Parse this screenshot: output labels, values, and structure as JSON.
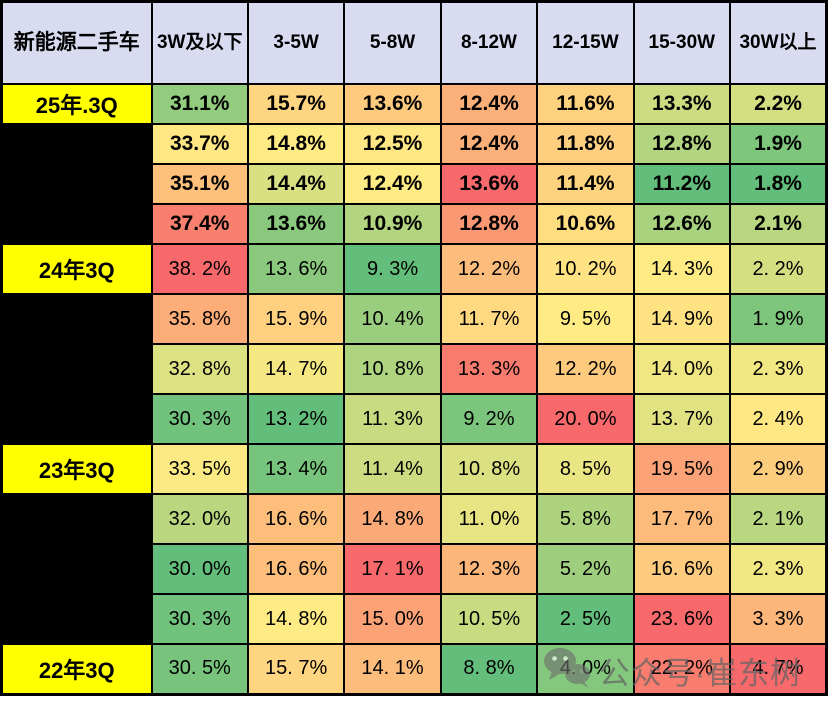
{
  "watermark": {
    "text": "公众号·崔东树",
    "icon": "wechat-icon"
  },
  "chart_data": {
    "type": "heatmap",
    "title": "新能源二手车",
    "value_unit": "%",
    "columns": [
      "3W及以下",
      "3-5W",
      "5-8W",
      "8-12W",
      "12-15W",
      "15-30W",
      "30W以上"
    ],
    "rows": [
      {
        "label": "25年.3Q",
        "label_bg": "yellow",
        "bold": true,
        "text": [
          "31.1%",
          "15.7%",
          "13.6%",
          "12.4%",
          "11.6%",
          "13.3%",
          "2.2%"
        ],
        "values": [
          31.1,
          15.7,
          13.6,
          12.4,
          11.6,
          13.3,
          2.2
        ]
      },
      {
        "label": "",
        "label_bg": "black",
        "bold": true,
        "text": [
          "33.7%",
          "14.8%",
          "12.5%",
          "12.4%",
          "11.8%",
          "12.8%",
          "1.9%"
        ],
        "values": [
          33.7,
          14.8,
          12.5,
          12.4,
          11.8,
          12.8,
          1.9
        ]
      },
      {
        "label": "",
        "label_bg": "black",
        "bold": true,
        "text": [
          "35.1%",
          "14.4%",
          "12.4%",
          "13.6%",
          "11.4%",
          "11.2%",
          "1.8%"
        ],
        "values": [
          35.1,
          14.4,
          12.4,
          13.6,
          11.4,
          11.2,
          1.8
        ]
      },
      {
        "label": "",
        "label_bg": "black",
        "bold": true,
        "text": [
          "37.4%",
          "13.6%",
          "10.9%",
          "12.8%",
          "10.6%",
          "12.6%",
          "2.1%"
        ],
        "values": [
          37.4,
          13.6,
          10.9,
          12.8,
          10.6,
          12.6,
          2.1
        ]
      },
      {
        "label": "24年3Q",
        "label_bg": "yellow",
        "bold": false,
        "text": [
          "38. 2%",
          "13. 6%",
          "9. 3%",
          "12. 2%",
          "10. 2%",
          "14. 3%",
          "2. 2%"
        ],
        "values": [
          38.2,
          13.6,
          9.3,
          12.2,
          10.2,
          14.3,
          2.2
        ]
      },
      {
        "label": "",
        "label_bg": "black",
        "bold": false,
        "text": [
          "35. 8%",
          "15. 9%",
          "10. 4%",
          "11. 7%",
          "9. 5%",
          "14. 9%",
          "1. 9%"
        ],
        "values": [
          35.8,
          15.9,
          10.4,
          11.7,
          9.5,
          14.9,
          1.9
        ]
      },
      {
        "label": "",
        "label_bg": "black",
        "bold": false,
        "text": [
          "32. 8%",
          "14. 7%",
          "10. 8%",
          "13. 3%",
          "12. 2%",
          "14. 0%",
          "2. 3%"
        ],
        "values": [
          32.8,
          14.7,
          10.8,
          13.3,
          12.2,
          14.0,
          2.3
        ]
      },
      {
        "label": "",
        "label_bg": "black",
        "bold": false,
        "text": [
          "30. 3%",
          "13. 2%",
          "11. 3%",
          "9. 2%",
          "20. 0%",
          "13. 7%",
          "2. 4%"
        ],
        "values": [
          30.3,
          13.2,
          11.3,
          9.2,
          20.0,
          13.7,
          2.4
        ]
      },
      {
        "label": "23年3Q",
        "label_bg": "yellow",
        "bold": false,
        "text": [
          "33. 5%",
          "13. 4%",
          "11. 4%",
          "10. 8%",
          "8. 5%",
          "19. 5%",
          "2. 9%"
        ],
        "values": [
          33.5,
          13.4,
          11.4,
          10.8,
          8.5,
          19.5,
          2.9
        ]
      },
      {
        "label": "",
        "label_bg": "black",
        "bold": false,
        "text": [
          "32. 0%",
          "16. 6%",
          "14. 8%",
          "11. 0%",
          "5. 8%",
          "17. 7%",
          "2. 1%"
        ],
        "values": [
          32.0,
          16.6,
          14.8,
          11.0,
          5.8,
          17.7,
          2.1
        ]
      },
      {
        "label": "",
        "label_bg": "black",
        "bold": false,
        "text": [
          "30. 0%",
          "16. 6%",
          "17. 1%",
          "12. 3%",
          "5. 2%",
          "16. 6%",
          "2. 3%"
        ],
        "values": [
          30.0,
          16.6,
          17.1,
          12.3,
          5.2,
          16.6,
          2.3
        ]
      },
      {
        "label": "",
        "label_bg": "black",
        "bold": false,
        "text": [
          "30. 3%",
          "14. 8%",
          "15. 0%",
          "10. 5%",
          "2. 5%",
          "23. 6%",
          "3. 3%"
        ],
        "values": [
          30.3,
          14.8,
          15.0,
          10.5,
          2.5,
          23.6,
          3.3
        ]
      },
      {
        "label": "22年3Q",
        "label_bg": "yellow",
        "bold": false,
        "text": [
          "30. 5%",
          "15. 7%",
          "14. 1%",
          "8. 8%",
          "4. 0%",
          "22. 2%",
          "4. 7%"
        ],
        "values": [
          30.5,
          15.7,
          14.1,
          8.8,
          4.0,
          22.2,
          4.7
        ]
      }
    ],
    "colors": {
      "header_bg": "#D9DCF0",
      "label_yellow": "#FFFF00",
      "label_black": "#000000",
      "border": "#000000",
      "scale_min_color": "#63BE7B",
      "scale_mid_color": "#FFEB84",
      "scale_max_color": "#F8696B"
    },
    "color_scale": {
      "mode": "per-column",
      "midpoint": "median",
      "point_overrides": {
        "0": {
          "mid": 33.6
        },
        "1": {
          "max": 20
        },
        "3": {
          "mid": 11.4
        },
        "4": {
          "mid": 9.5
        },
        "6": {
          "mid": 2.35
        }
      }
    },
    "layout_hints": {
      "legend": false,
      "first_column_is_row_labels": true
    }
  }
}
